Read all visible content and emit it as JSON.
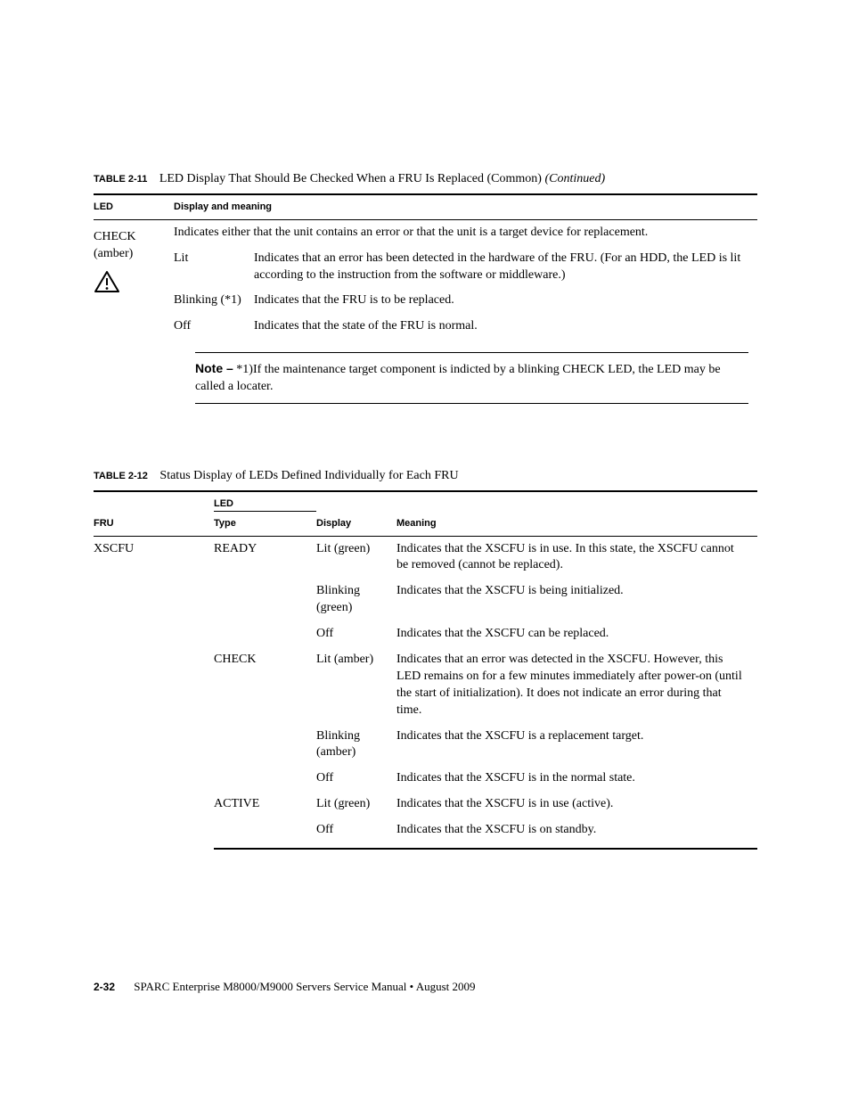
{
  "t211": {
    "label": "TABLE 2-11",
    "title": "LED Display That Should Be Checked When a FRU Is Replaced (Common)",
    "cont": "(Continued)",
    "headers": {
      "led": "LED",
      "disp": "Display and meaning"
    },
    "led_name": "CHECK",
    "led_color": "(amber)",
    "intro": "Indicates either that the unit contains an error or that the unit is a target device for replacement.",
    "rows": [
      {
        "state": "Lit",
        "meaning": "Indicates that an error has been detected in the hardware of the FRU. (For an HDD, the LED is lit according to the instruction from the software or middleware.)"
      },
      {
        "state": "Blinking (*1)",
        "meaning": "Indicates that the FRU is to be replaced."
      },
      {
        "state": "Off",
        "meaning": "Indicates that the state of the FRU is normal."
      }
    ],
    "note_label": "Note –",
    "note_text": "*1)If the maintenance target component is indicted by a blinking CHECK LED, the LED may be called a locater."
  },
  "t212": {
    "label": "TABLE 2-12",
    "title": "Status Display of LEDs Defined Individually for Each FRU",
    "group_led": "LED",
    "headers": {
      "fru": "FRU",
      "type": "Type",
      "display": "Display",
      "meaning": "Meaning"
    },
    "fru": "XSCFU",
    "rows": [
      {
        "type": "READY",
        "display": "Lit (green)",
        "meaning": "Indicates that the XSCFU is in use. In this state, the XSCFU cannot be removed (cannot be replaced)."
      },
      {
        "type": "",
        "display": "Blinking (green)",
        "meaning": "Indicates that the XSCFU is being initialized."
      },
      {
        "type": "",
        "display": "Off",
        "meaning": "Indicates that the XSCFU can be replaced."
      },
      {
        "type": "CHECK",
        "display": "Lit (amber)",
        "meaning": "Indicates that an error was detected in the XSCFU. However, this LED remains on for a few minutes immediately after power-on (until the start of initialization). It does not indicate an error during that time."
      },
      {
        "type": "",
        "display": "Blinking (amber)",
        "meaning": "Indicates that the XSCFU is a replacement target."
      },
      {
        "type": "",
        "display": "Off",
        "meaning": "Indicates that the XSCFU is in the normal state."
      },
      {
        "type": "ACTIVE",
        "display": "Lit (green)",
        "meaning": "Indicates that the XSCFU is in use (active)."
      },
      {
        "type": "",
        "display": "Off",
        "meaning": "Indicates that the XSCFU is on standby."
      }
    ]
  },
  "footer": {
    "page": "2-32",
    "text": "SPARC Enterprise M8000/M9000 Servers Service Manual • August 2009"
  }
}
